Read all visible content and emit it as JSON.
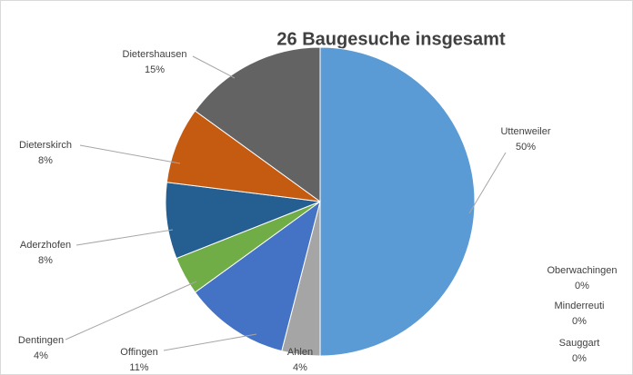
{
  "chart_data": {
    "type": "pie",
    "title": "26 Baugesuche insgesamt",
    "categories": [
      "Uttenweiler",
      "Oberwachingen",
      "Minderreuti",
      "Sauggart",
      "Ahlen",
      "Offingen",
      "Dentingen",
      "Aderzhofen",
      "Dieterskirch",
      "Dietershausen"
    ],
    "values": [
      50,
      0,
      0,
      0,
      4,
      11,
      4,
      8,
      8,
      15
    ],
    "value_labels": [
      "50%",
      "0%",
      "0%",
      "0%",
      "4%",
      "11%",
      "4%",
      "8%",
      "8%",
      "15%"
    ],
    "colors": [
      "#5b9bd5",
      "#ed7d31",
      "#a5a5a5",
      "#ffc000",
      "#a5a5a5",
      "#4472c4",
      "#70ad47",
      "#255e91",
      "#c55a11",
      "#636363"
    ]
  }
}
